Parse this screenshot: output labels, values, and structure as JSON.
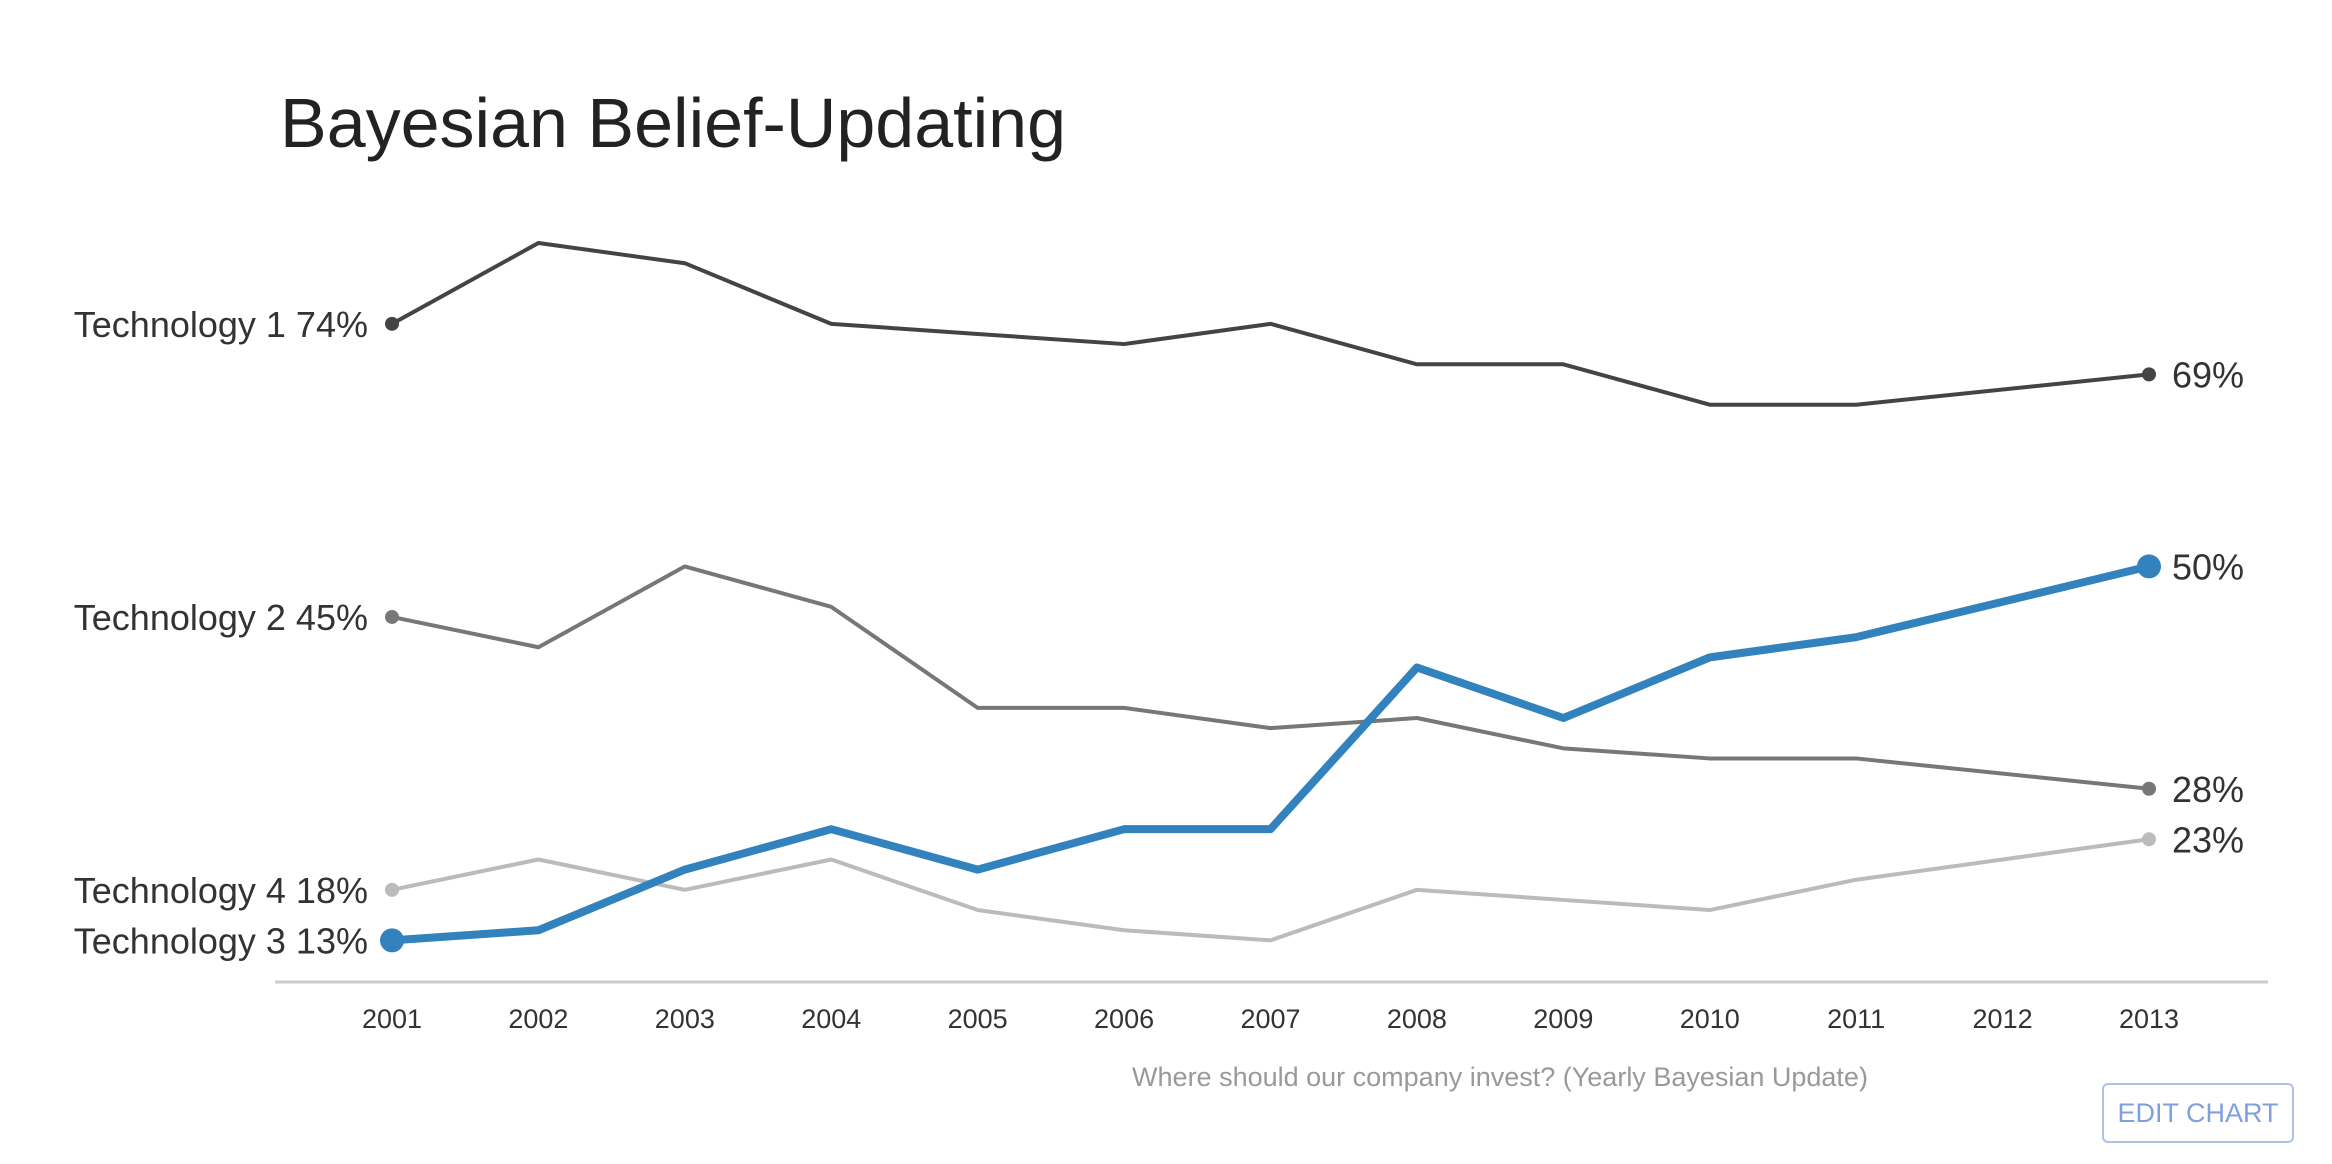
{
  "chart_data": {
    "type": "line",
    "title": "Bayesian Belief-Updating",
    "xlabel": "Where should our company invest?  (Yearly Bayesian Update)",
    "ylabel": "",
    "x": [
      2001,
      2002,
      2003,
      2004,
      2005,
      2006,
      2007,
      2008,
      2009,
      2010,
      2011,
      2012,
      2013
    ],
    "ylim": [
      7,
      82
    ],
    "grid": false,
    "legend": "inline labels at line starts and ends",
    "series": [
      {
        "name": "Technology 1",
        "start_label": "Technology 1 74%",
        "end_label": "69%",
        "color": "#444444",
        "emphasized": false,
        "points": [
          [
            2001,
            74
          ],
          [
            2002,
            82
          ],
          [
            2003,
            80
          ],
          [
            2004,
            74
          ],
          [
            2005,
            73
          ],
          [
            2006,
            72
          ],
          [
            2007,
            74
          ],
          [
            2008,
            70
          ],
          [
            2009,
            70
          ],
          [
            2010,
            66
          ],
          [
            2011,
            66
          ],
          [
            2013,
            69
          ]
        ]
      },
      {
        "name": "Technology 2",
        "start_label": "Technology 2 45%",
        "end_label": "28%",
        "color": "#777777",
        "emphasized": false,
        "points": [
          [
            2001,
            45
          ],
          [
            2002,
            42
          ],
          [
            2003,
            50
          ],
          [
            2004,
            46
          ],
          [
            2005,
            36
          ],
          [
            2006,
            36
          ],
          [
            2007,
            34
          ],
          [
            2008,
            35
          ],
          [
            2009,
            32
          ],
          [
            2010,
            31
          ],
          [
            2011,
            31
          ],
          [
            2013,
            28
          ]
        ]
      },
      {
        "name": "Technology 4",
        "start_label": "Technology 4 18%",
        "end_label": "23%",
        "color": "#bbbbbb",
        "emphasized": false,
        "points": [
          [
            2001,
            18
          ],
          [
            2002,
            21
          ],
          [
            2003,
            18
          ],
          [
            2004,
            21
          ],
          [
            2005,
            16
          ],
          [
            2006,
            14
          ],
          [
            2007,
            13
          ],
          [
            2008,
            18
          ],
          [
            2009,
            17
          ],
          [
            2010,
            16
          ],
          [
            2011,
            19
          ],
          [
            2013,
            23
          ]
        ]
      },
      {
        "name": "Technology 3",
        "start_label": "Technology 3 13%",
        "end_label": "50%",
        "color": "#3182bd",
        "emphasized": true,
        "points": [
          [
            2001,
            13
          ],
          [
            2002,
            14
          ],
          [
            2003,
            20
          ],
          [
            2004,
            24
          ],
          [
            2005,
            20
          ],
          [
            2006,
            24
          ],
          [
            2007,
            24
          ],
          [
            2008,
            40
          ],
          [
            2009,
            35
          ],
          [
            2010,
            41
          ],
          [
            2011,
            43
          ],
          [
            2013,
            50
          ]
        ]
      }
    ]
  },
  "controls": {
    "edit_chart_label": "EDIT CHART"
  }
}
